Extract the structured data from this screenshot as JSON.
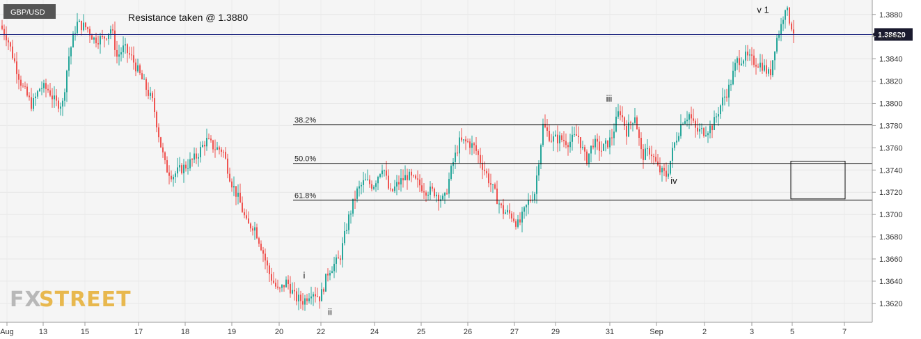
{
  "chart_data": {
    "type": "candlestick",
    "symbol": "GBP/USD",
    "title": "Resistance taken @ 1.3880",
    "ylim": [
      1.3603,
      1.3893
    ],
    "y_ticks": [
      "1.3880",
      "1.3860",
      "1.3840",
      "1.3820",
      "1.3800",
      "1.3780",
      "1.3760",
      "1.3740",
      "1.3720",
      "1.3700",
      "1.3680",
      "1.3660",
      "1.3640",
      "1.3620"
    ],
    "y_tick_values": [
      1.388,
      1.386,
      1.384,
      1.382,
      1.38,
      1.378,
      1.376,
      1.374,
      1.372,
      1.37,
      1.368,
      1.366,
      1.364,
      1.362
    ],
    "x_ticks": [
      "Aug",
      "13",
      "15",
      "17",
      "18",
      "19",
      "20",
      "22",
      "24",
      "25",
      "26",
      "27",
      "29",
      "31",
      "Sep",
      "2",
      "3",
      "5",
      "7"
    ],
    "current_price": "1.38620",
    "current_price_value": 1.3862,
    "colors": {
      "up": "#26a69a",
      "down": "#ef5350",
      "price_line": "#1a237e",
      "badge": "#1a1a2e"
    },
    "fibonacci": [
      {
        "label": "38.2%",
        "value": 1.3781
      },
      {
        "label": "50.0%",
        "value": 1.3746
      },
      {
        "label": "61.8%",
        "value": 1.3713
      }
    ],
    "wave_labels": [
      {
        "label": "i",
        "value": 1.3645
      },
      {
        "label": "ii",
        "value": 1.3612
      },
      {
        "label": "iii",
        "value": 1.3804
      },
      {
        "label": "iv",
        "value": 1.373
      },
      {
        "label": "v 1",
        "value": 1.3884
      }
    ],
    "target_box": {
      "top": 1.3748,
      "bottom": 1.3714
    },
    "price_path": [
      [
        0,
        1.387
      ],
      [
        10,
        1.386
      ],
      [
        22,
        1.3835
      ],
      [
        32,
        1.3815
      ],
      [
        46,
        1.3798
      ],
      [
        58,
        1.3815
      ],
      [
        70,
        1.3812
      ],
      [
        80,
        1.38
      ],
      [
        90,
        1.38
      ],
      [
        98,
        1.384
      ],
      [
        110,
        1.3872
      ],
      [
        125,
        1.3868
      ],
      [
        135,
        1.3858
      ],
      [
        148,
        1.3858
      ],
      [
        160,
        1.3868
      ],
      [
        168,
        1.3842
      ],
      [
        178,
        1.385
      ],
      [
        190,
        1.384
      ],
      [
        205,
        1.382
      ],
      [
        220,
        1.38
      ],
      [
        230,
        1.3765
      ],
      [
        238,
        1.3742
      ],
      [
        248,
        1.3735
      ],
      [
        258,
        1.374
      ],
      [
        270,
        1.3745
      ],
      [
        282,
        1.3752
      ],
      [
        296,
        1.3767
      ],
      [
        308,
        1.376
      ],
      [
        320,
        1.3758
      ],
      [
        332,
        1.373
      ],
      [
        345,
        1.371
      ],
      [
        355,
        1.369
      ],
      [
        365,
        1.369
      ],
      [
        376,
        1.367
      ],
      [
        386,
        1.3648
      ],
      [
        400,
        1.363
      ],
      [
        412,
        1.364
      ],
      [
        424,
        1.3625
      ],
      [
        436,
        1.3622
      ],
      [
        448,
        1.3632
      ],
      [
        460,
        1.3625
      ],
      [
        472,
        1.365
      ],
      [
        488,
        1.366
      ],
      [
        500,
        1.3695
      ],
      [
        512,
        1.372
      ],
      [
        524,
        1.373
      ],
      [
        536,
        1.3726
      ],
      [
        550,
        1.3745
      ],
      [
        560,
        1.3718
      ],
      [
        572,
        1.3728
      ],
      [
        585,
        1.3735
      ],
      [
        600,
        1.3728
      ],
      [
        612,
        1.3722
      ],
      [
        625,
        1.372
      ],
      [
        638,
        1.3712
      ],
      [
        650,
        1.3745
      ],
      [
        660,
        1.3765
      ],
      [
        672,
        1.3765
      ],
      [
        682,
        1.376
      ],
      [
        696,
        1.374
      ],
      [
        710,
        1.372
      ],
      [
        722,
        1.3703
      ],
      [
        734,
        1.37
      ],
      [
        745,
        1.369
      ],
      [
        758,
        1.371
      ],
      [
        768,
        1.372
      ],
      [
        780,
        1.378
      ],
      [
        792,
        1.3768
      ],
      [
        805,
        1.3768
      ],
      [
        818,
        1.3765
      ],
      [
        830,
        1.3772
      ],
      [
        842,
        1.3748
      ],
      [
        852,
        1.3765
      ],
      [
        864,
        1.3758
      ],
      [
        878,
        1.3768
      ],
      [
        890,
        1.3795
      ],
      [
        900,
        1.3775
      ],
      [
        912,
        1.379
      ],
      [
        922,
        1.3752
      ],
      [
        934,
        1.3758
      ],
      [
        946,
        1.374
      ],
      [
        958,
        1.3735
      ],
      [
        968,
        1.3762
      ],
      [
        980,
        1.3785
      ],
      [
        990,
        1.379
      ],
      [
        1000,
        1.3775
      ],
      [
        1012,
        1.3775
      ],
      [
        1024,
        1.378
      ],
      [
        1036,
        1.38
      ],
      [
        1048,
        1.3815
      ],
      [
        1058,
        1.3838
      ],
      [
        1070,
        1.3842
      ],
      [
        1082,
        1.3838
      ],
      [
        1094,
        1.3835
      ],
      [
        1106,
        1.3825
      ],
      [
        1114,
        1.3855
      ],
      [
        1122,
        1.387
      ],
      [
        1128,
        1.3888
      ],
      [
        1134,
        1.3875
      ],
      [
        1140,
        1.3865
      ]
    ]
  }
}
